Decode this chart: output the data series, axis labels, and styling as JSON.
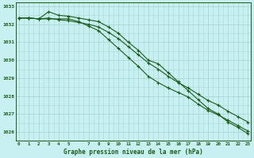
{
  "title": "Graphe pression niveau de la mer (hPa)",
  "background_color": "#c8f0f0",
  "grid_color": "#a8d8d8",
  "line_color": "#1a5c1a",
  "text_color": "#1a5c1a",
  "hours": [
    0,
    1,
    2,
    3,
    4,
    5,
    6,
    7,
    8,
    9,
    10,
    11,
    12,
    13,
    14,
    15,
    16,
    17,
    18,
    19,
    20,
    21,
    22,
    23
  ],
  "series1": [
    1032.35,
    1032.35,
    1032.3,
    1032.7,
    1032.5,
    1032.45,
    1032.35,
    1032.25,
    1032.15,
    1031.85,
    1031.5,
    1031.0,
    1030.55,
    1030.0,
    1029.8,
    1029.3,
    1028.8,
    1028.3,
    1027.8,
    1027.3,
    1027.0,
    1026.55,
    1026.25,
    1025.9
  ],
  "series2": [
    1032.35,
    1032.35,
    1032.3,
    1032.3,
    1032.3,
    1032.3,
    1032.15,
    1031.9,
    1031.65,
    1031.15,
    1030.65,
    1030.15,
    1029.65,
    1029.1,
    1028.75,
    1028.45,
    1028.2,
    1027.95,
    1027.55,
    1027.2,
    1026.95,
    1026.65,
    1026.35,
    1026.05
  ],
  "series3": [
    1032.35,
    1032.35,
    1032.3,
    1032.35,
    1032.25,
    1032.2,
    1032.1,
    1032.0,
    1031.85,
    1031.55,
    1031.2,
    1030.75,
    1030.3,
    1029.85,
    1029.5,
    1029.1,
    1028.75,
    1028.45,
    1028.1,
    1027.75,
    1027.5,
    1027.15,
    1026.85,
    1026.55
  ],
  "ylim_min": 1025.5,
  "ylim_max": 1033.2,
  "yticks": [
    1026,
    1027,
    1028,
    1029,
    1030,
    1031,
    1032,
    1033
  ],
  "xticks": [
    0,
    1,
    2,
    3,
    4,
    5,
    7,
    8,
    9,
    10,
    11,
    12,
    13,
    14,
    15,
    16,
    17,
    18,
    19,
    20,
    21,
    22,
    23
  ],
  "figsize": [
    3.2,
    2.0
  ],
  "dpi": 100
}
